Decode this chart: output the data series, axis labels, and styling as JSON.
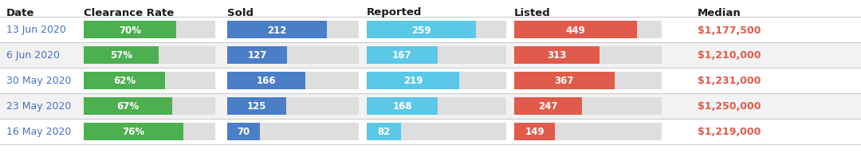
{
  "headers": [
    "Date",
    "Clearance Rate",
    "Sold",
    "Reported",
    "Listed",
    "Median"
  ],
  "rows": [
    {
      "date": "13 Jun 2020",
      "clearance": 70,
      "sold": 212,
      "reported": 259,
      "listed": 449,
      "median": "$1,177,500"
    },
    {
      "date": "6 Jun 2020",
      "clearance": 57,
      "sold": 127,
      "reported": 167,
      "listed": 313,
      "median": "$1,210,000"
    },
    {
      "date": "30 May 2020",
      "clearance": 62,
      "sold": 166,
      "reported": 219,
      "listed": 367,
      "median": "$1,231,000"
    },
    {
      "date": "23 May 2020",
      "clearance": 67,
      "sold": 125,
      "reported": 168,
      "listed": 247,
      "median": "$1,250,000"
    },
    {
      "date": "16 May 2020",
      "clearance": 76,
      "sold": 70,
      "reported": 82,
      "listed": 149,
      "median": "$1,219,000"
    }
  ],
  "color_green": "#4CAF50",
  "color_blue_dark": "#4A7EC7",
  "color_blue_light": "#5BC8E8",
  "color_red": "#E05B4B",
  "color_bg_bar": "#DEDEDE",
  "color_date": "#4472C4",
  "color_median": "#E05B4B",
  "color_header": "#1a1a1a",
  "color_row_bg_even": "#FFFFFF",
  "color_row_bg_odd": "#F2F2F2",
  "color_sep_line": "#CCCCCC",
  "bg_color": "#FFFFFF",
  "clearance_max": 100,
  "sold_max": 280,
  "reported_max": 330,
  "listed_max": 540,
  "header_fontsize": 9.5,
  "row_fontsize": 9.0,
  "bar_label_fontsize": 8.5
}
